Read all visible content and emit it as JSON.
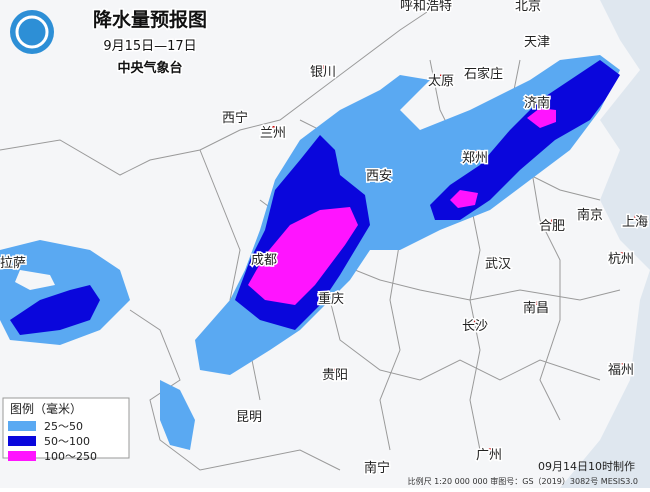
{
  "header": {
    "title": "降水量预报图",
    "period": "9月15日—17日",
    "agency": "中央气象台"
  },
  "cities": [
    {
      "label": "呼和浩特"
    },
    {
      "label": "北京"
    },
    {
      "label": "天津"
    },
    {
      "label": "银川"
    },
    {
      "label": "太原"
    },
    {
      "label": "石家庄"
    },
    {
      "label": "西宁"
    },
    {
      "label": "兰州"
    },
    {
      "label": "济南"
    },
    {
      "label": "郑州"
    },
    {
      "label": "西安"
    },
    {
      "label": "南京"
    },
    {
      "label": "上海"
    },
    {
      "label": "合肥"
    },
    {
      "label": "拉萨"
    },
    {
      "label": "成都"
    },
    {
      "label": "武汉"
    },
    {
      "label": "杭州"
    },
    {
      "label": "重庆"
    },
    {
      "label": "南昌"
    },
    {
      "label": "长沙"
    },
    {
      "label": "贵阳"
    },
    {
      "label": "福州"
    },
    {
      "label": "昆明"
    },
    {
      "label": "南宁"
    },
    {
      "label": "广州"
    }
  ],
  "legend": {
    "title": "图例（毫米）",
    "items": [
      {
        "label": "25～50"
      },
      {
        "label": "50～100"
      },
      {
        "label": "100～250"
      }
    ]
  },
  "footer": {
    "scale": "比例尺 1:20 000 000  审图号：GS（2019）3082号 MESIS3.0",
    "issued": "09月14日10时制作"
  }
}
